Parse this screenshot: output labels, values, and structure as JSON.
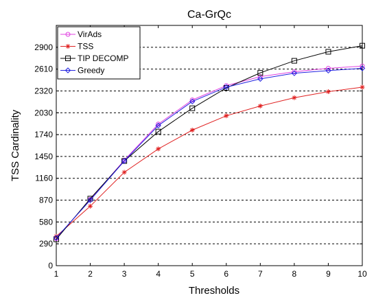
{
  "chart_data": {
    "type": "line",
    "title": "Ca-GrQc",
    "xlabel": "Thresholds",
    "ylabel": "TSS Cardinality",
    "x": [
      1,
      2,
      3,
      4,
      5,
      6,
      7,
      8,
      9,
      10
    ],
    "xlim": [
      1,
      10
    ],
    "ylim": [
      0,
      3190
    ],
    "yticks": [
      0,
      290,
      580,
      870,
      1160,
      1450,
      1740,
      2030,
      2320,
      2610,
      2900
    ],
    "xticks": [
      1,
      2,
      3,
      4,
      5,
      6,
      7,
      8,
      9,
      10
    ],
    "grid": "dashed-horizontal",
    "legend_position": "top-left",
    "series": [
      {
        "name": "VirAds",
        "color": "#e040e0",
        "marker": "circle",
        "values": [
          360,
          880,
          1400,
          1880,
          2200,
          2390,
          2510,
          2575,
          2620,
          2650
        ]
      },
      {
        "name": "TSS",
        "color": "#e02020",
        "marker": "star",
        "values": [
          390,
          790,
          1240,
          1550,
          1800,
          1990,
          2120,
          2230,
          2310,
          2370
        ]
      },
      {
        "name": "TIP DECOMP",
        "color": "#000000",
        "marker": "square",
        "values": [
          350,
          890,
          1390,
          1780,
          2090,
          2360,
          2560,
          2720,
          2840,
          2920
        ]
      },
      {
        "name": "Greedy",
        "color": "#2020e0",
        "marker": "diamond",
        "values": [
          370,
          870,
          1390,
          1860,
          2180,
          2370,
          2480,
          2555,
          2590,
          2620
        ]
      }
    ]
  }
}
